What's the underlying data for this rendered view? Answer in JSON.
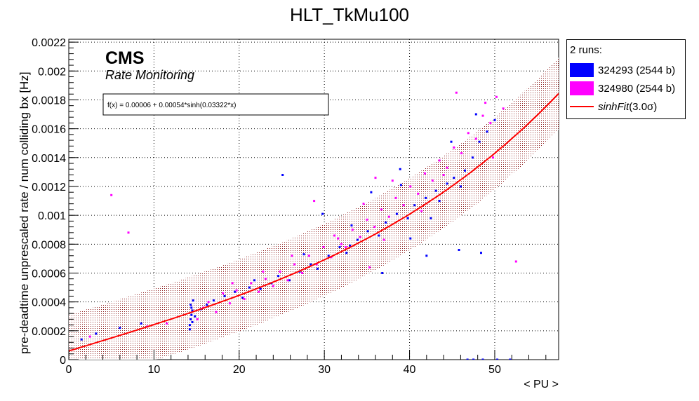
{
  "chart_data": {
    "type": "scatter",
    "title": "HLT_TkMu100",
    "xlabel": "< PU >",
    "ylabel": "pre-deadtime unprescaled rate / num colliding bx [Hz]",
    "xlim": [
      0,
      57.5
    ],
    "ylim": [
      0,
      0.00222
    ],
    "xticks": [
      0,
      10,
      20,
      30,
      40,
      50
    ],
    "yticks": [
      0,
      0.0002,
      0.0004,
      0.0006,
      0.0008,
      0.001,
      0.0012,
      0.0014,
      0.0016,
      0.0018,
      0.002,
      0.0022
    ],
    "ytick_labels": [
      "0",
      "0.0002",
      "0.0004",
      "0.0006",
      "0.0008",
      "0.001",
      "0.0012",
      "0.0014",
      "0.0016",
      "0.0018",
      "0.002",
      "0.0022"
    ],
    "grid": true,
    "legend_placement": "right-outside",
    "cms_label": "CMS",
    "cms_sublabel": "Rate Monitoring",
    "fit_text": "f(x) = 0.00006 + 0.00054*sinh(0.03322*x)",
    "fit": {
      "a": 6e-05,
      "b": 0.00054,
      "c": 0.03322,
      "band_sigma": 3.0,
      "band_halfwidth": 0.00025
    },
    "legend": {
      "header": "2 runs:",
      "fit_label_name": "sinhFit",
      "fit_label_sigma": "(3.0σ)"
    },
    "series": [
      {
        "name": "324293 (2544 b)",
        "color": "#0000ff",
        "x": [
          1.5,
          3.2,
          6.0,
          8.5,
          14.2,
          14.3,
          14.4,
          14.5,
          14.3,
          14.6,
          14.2,
          14.5,
          14.4,
          14.8,
          15.5,
          16.2,
          17.0,
          18.3,
          19.5,
          20.4,
          21.2,
          22.5,
          23.8,
          24.6,
          25.9,
          27.1,
          28.4,
          29.2,
          30.5,
          31.8,
          32.6,
          33.9,
          35.1,
          36.4,
          37.2,
          38.5,
          39.8,
          40.6,
          41.9,
          43.1,
          44.4,
          45.2,
          46.5,
          47.4,
          48.2,
          49.1,
          50.0,
          25.1,
          29.8,
          35.5,
          38.9,
          42.5,
          44.9,
          47.8,
          36.8,
          21.8,
          27.6,
          33.2,
          40.1,
          46.0,
          46.8,
          47.5,
          48.6,
          50.3,
          51.8,
          42.0,
          43.5,
          45.8,
          48.4,
          33.0,
          39.0
        ],
        "y": [
          0.00014,
          0.00018,
          0.00022,
          0.00025,
          0.00024,
          0.00028,
          0.00031,
          0.00034,
          0.00038,
          0.00041,
          0.00021,
          0.00026,
          0.00036,
          0.0003,
          0.00035,
          0.00038,
          0.00041,
          0.00044,
          0.00047,
          0.00043,
          0.0005,
          0.00049,
          0.00053,
          0.00058,
          0.00055,
          0.00061,
          0.00066,
          0.00063,
          0.00072,
          0.00078,
          0.00074,
          0.00083,
          0.00089,
          0.00086,
          0.00095,
          0.00101,
          0.00098,
          0.00107,
          0.00112,
          0.00117,
          0.00122,
          0.00126,
          0.00131,
          0.0014,
          0.00151,
          0.00158,
          0.00166,
          0.00128,
          0.00101,
          0.00116,
          0.00132,
          0.00098,
          0.00151,
          0.0017,
          0.0006,
          0.00055,
          0.00073,
          0.00093,
          0.00084,
          0.0012,
          0.0,
          0.0,
          0.0,
          0.0,
          0.0,
          0.00072,
          0.0011,
          0.00076,
          0.00074,
          0.00079,
          0.00121
        ]
      },
      {
        "name": "324980 (2544 b)",
        "color": "#ff00ff",
        "x": [
          2.5,
          5.0,
          7.0,
          9.2,
          11.5,
          15.1,
          15.8,
          16.4,
          17.3,
          18.1,
          18.9,
          19.7,
          20.6,
          21.4,
          22.3,
          23.1,
          24.0,
          24.8,
          25.7,
          26.5,
          27.4,
          28.2,
          29.1,
          29.9,
          30.8,
          31.6,
          32.5,
          33.3,
          34.2,
          35.0,
          35.9,
          36.7,
          37.6,
          38.4,
          39.3,
          40.1,
          41.0,
          41.8,
          42.7,
          43.5,
          44.4,
          45.2,
          46.1,
          46.9,
          47.8,
          48.6,
          49.5,
          50.2,
          51.0,
          52.5,
          19.2,
          22.8,
          26.2,
          31.2,
          37.0,
          41.4,
          44.0,
          48.9,
          36.0,
          28.8,
          32.0,
          38.0,
          49.8,
          35.3,
          34.6,
          45.5
        ],
        "y": [
          0.00016,
          0.00114,
          0.00088,
          0.00023,
          0.00025,
          0.00028,
          0.00036,
          0.0004,
          0.00033,
          0.00046,
          0.00039,
          0.00048,
          0.00042,
          0.00053,
          0.00047,
          0.00056,
          0.00051,
          0.00061,
          0.00055,
          0.00066,
          0.0006,
          0.00072,
          0.00066,
          0.00078,
          0.00071,
          0.00084,
          0.00078,
          0.0009,
          0.00085,
          0.00097,
          0.00092,
          0.00104,
          0.00099,
          0.00112,
          0.00107,
          0.0012,
          0.00115,
          0.00129,
          0.00124,
          0.00138,
          0.00133,
          0.00147,
          0.00143,
          0.00157,
          0.00153,
          0.00169,
          0.00164,
          0.00182,
          0.00174,
          0.00068,
          0.00053,
          0.00061,
          0.00072,
          0.00086,
          0.00083,
          0.00103,
          0.00128,
          0.00178,
          0.00126,
          0.0011,
          0.0008,
          0.00124,
          0.0014,
          0.00064,
          0.00108,
          0.00185
        ]
      }
    ]
  }
}
